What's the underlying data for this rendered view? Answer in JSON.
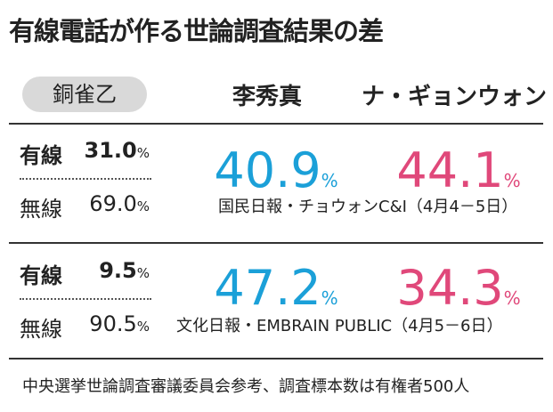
{
  "header": {
    "title": "有線電話が作る世論調査結果の差"
  },
  "table": {
    "columns": [
      "銅雀乙",
      "李秀真",
      "ナ・ギョンウォン"
    ],
    "groups": [
      {
        "rows": [
          {
            "label": "有線",
            "number": "31.0",
            "unit": "%"
          },
          {
            "label": "無線",
            "number": "69.0",
            "unit": "%"
          }
        ],
        "results": [
          {
            "number": "40.9",
            "unit": "%",
            "color": "#1ba0d8"
          },
          {
            "number": "44.1",
            "unit": "%",
            "color": "#e0487a"
          }
        ],
        "source": "国民日報・チョウォンC&I（4月4－5日）"
      },
      {
        "rows": [
          {
            "label": "有線",
            "number": "9.5",
            "unit": "%"
          },
          {
            "label": "無線",
            "number": "90.5",
            "unit": "%"
          }
        ],
        "results": [
          {
            "number": "47.2",
            "unit": "%",
            "color": "#1ba0d8"
          },
          {
            "number": "34.3",
            "unit": "%",
            "color": "#e0487a"
          }
        ],
        "source": "文化日報・EMBRAIN PUBLIC（4月5－6日）"
      }
    ]
  },
  "footer": {
    "note": "中央選挙世論調査審議委員会参考、調査標本数は有権者500人"
  }
}
